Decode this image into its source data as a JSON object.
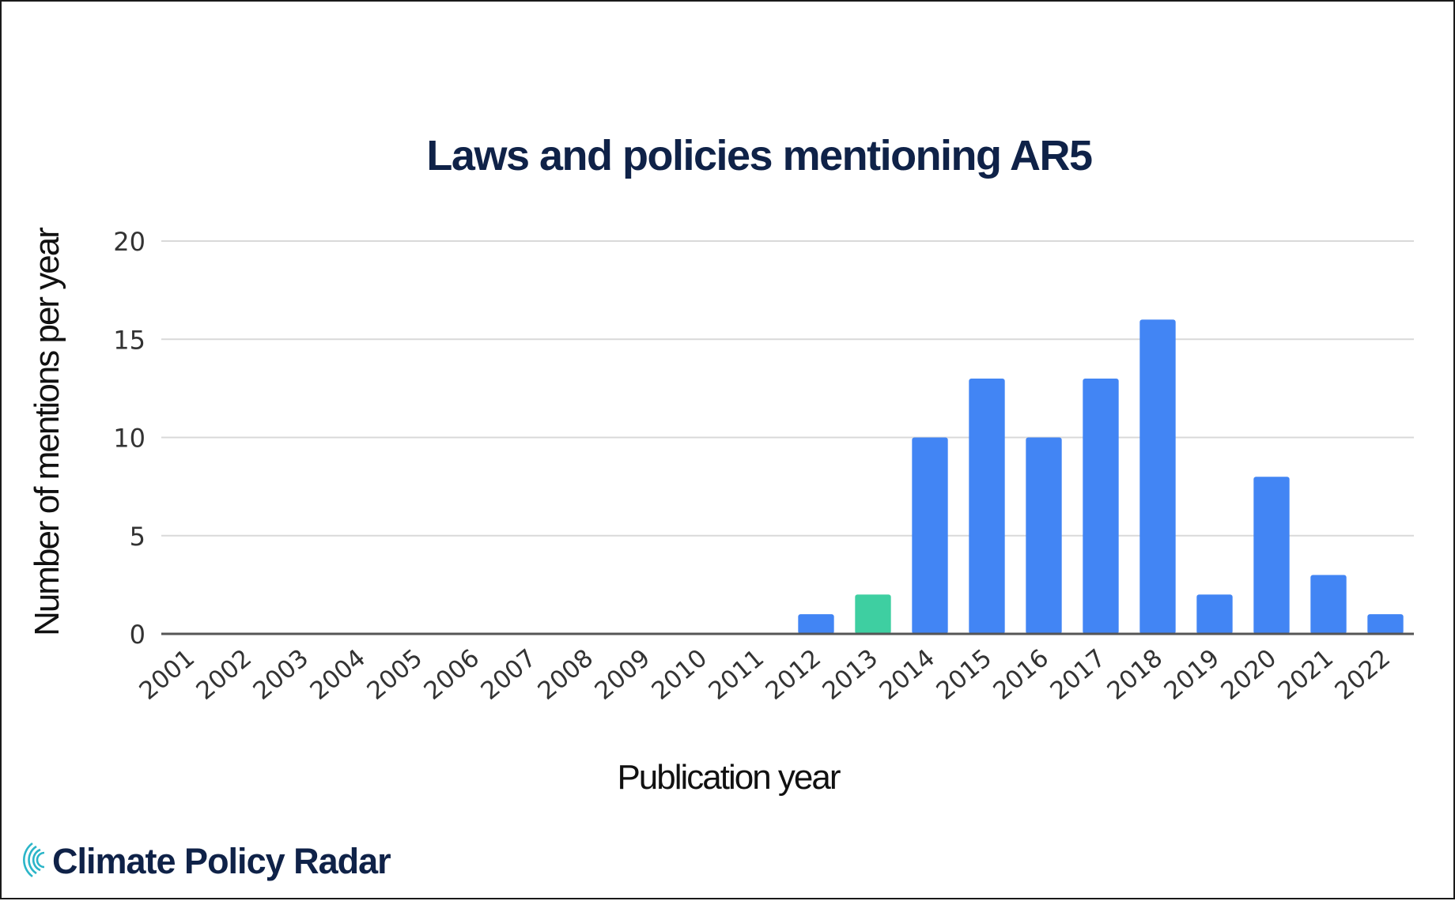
{
  "chart_data": {
    "type": "bar",
    "title": "Laws and policies mentioning AR5",
    "xlabel": "Publication year",
    "ylabel": "Number of mentions per year",
    "categories": [
      "2001",
      "2002",
      "2003",
      "2004",
      "2005",
      "2006",
      "2007",
      "2008",
      "2009",
      "2010",
      "2011",
      "2012",
      "2013",
      "2014",
      "2015",
      "2016",
      "2017",
      "2018",
      "2019",
      "2020",
      "2021",
      "2022"
    ],
    "values": [
      0,
      0,
      0,
      0,
      0,
      0,
      0,
      0,
      0,
      0,
      0,
      1,
      2,
      10,
      13,
      10,
      13,
      16,
      2,
      8,
      3,
      1
    ],
    "highlight_category": "2013",
    "ylim": [
      0,
      20
    ],
    "yticks": [
      0,
      5,
      10,
      15,
      20
    ],
    "grid": true,
    "legend": "none"
  },
  "colors": {
    "bar": "#4285f4",
    "highlight": "#3ecfa1",
    "title": "#0f2248",
    "grid": "#d9d9d9",
    "baseline": "#555555"
  },
  "brand": {
    "name": "Climate Policy Radar",
    "icon": "radar-arcs-icon"
  }
}
